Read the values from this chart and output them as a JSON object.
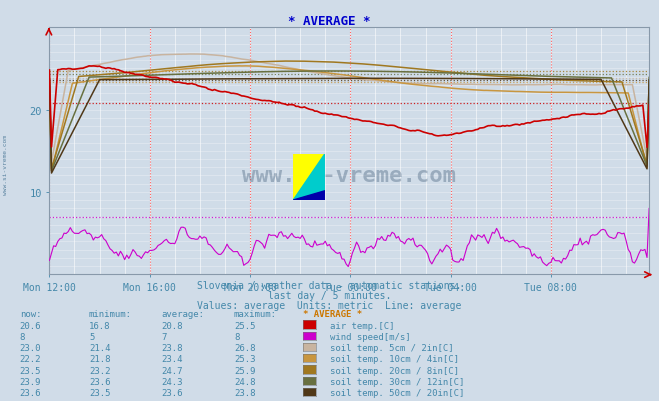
{
  "title": "* AVERAGE *",
  "title_color": "#0000cc",
  "bg_color": "#d0dce8",
  "plot_bg_color": "#d0dce8",
  "xlabel_color": "#4488aa",
  "text_color": "#4488aa",
  "x_labels": [
    "Mon 12:00",
    "Mon 16:00",
    "Mon 20:00",
    "Tue 00:00",
    "Tue 04:00",
    "Tue 08:00"
  ],
  "x_ticks": [
    0,
    48,
    96,
    144,
    192,
    240
  ],
  "total_points": 288,
  "subtitle1": "Slovenia / weather data - automatic stations.",
  "subtitle2": "last day / 5 minutes.",
  "subtitle3": "Values: average  Units: metric  Line: average",
  "ylim": [
    0,
    30
  ],
  "yticks": [
    10,
    20
  ],
  "series": {
    "air_temp": {
      "color": "#cc0000",
      "label": "air temp.[C]",
      "now": "20.6",
      "min": "16.8",
      "avg": "20.8",
      "max": "25.5"
    },
    "wind_speed": {
      "color": "#cc00cc",
      "label": "wind speed[m/s]",
      "now": "8",
      "min": "5",
      "avg": "7",
      "max": "8"
    },
    "soil_5cm": {
      "color": "#c8b4a0",
      "label": "soil temp. 5cm / 2in[C]",
      "now": "23.0",
      "min": "21.4",
      "avg": "23.8",
      "max": "26.8"
    },
    "soil_10cm": {
      "color": "#c89640",
      "label": "soil temp. 10cm / 4in[C]",
      "now": "22.2",
      "min": "21.8",
      "avg": "23.4",
      "max": "25.3"
    },
    "soil_20cm": {
      "color": "#a07820",
      "label": "soil temp. 20cm / 8in[C]",
      "now": "23.5",
      "min": "23.2",
      "avg": "24.7",
      "max": "25.9"
    },
    "soil_30cm": {
      "color": "#687040",
      "label": "soil temp. 30cm / 12in[C]",
      "now": "23.9",
      "min": "23.6",
      "avg": "24.3",
      "max": "24.8"
    },
    "soil_50cm": {
      "color": "#503818",
      "label": "soil temp. 50cm / 20in[C]",
      "now": "23.6",
      "min": "23.5",
      "avg": "23.6",
      "max": "23.8"
    }
  },
  "table_header": [
    "now:",
    "minimum:",
    "average:",
    "maximum:",
    "* AVERAGE *"
  ],
  "watermark": "www.si-vreme.com",
  "left_label": "www.si-vreme.com"
}
